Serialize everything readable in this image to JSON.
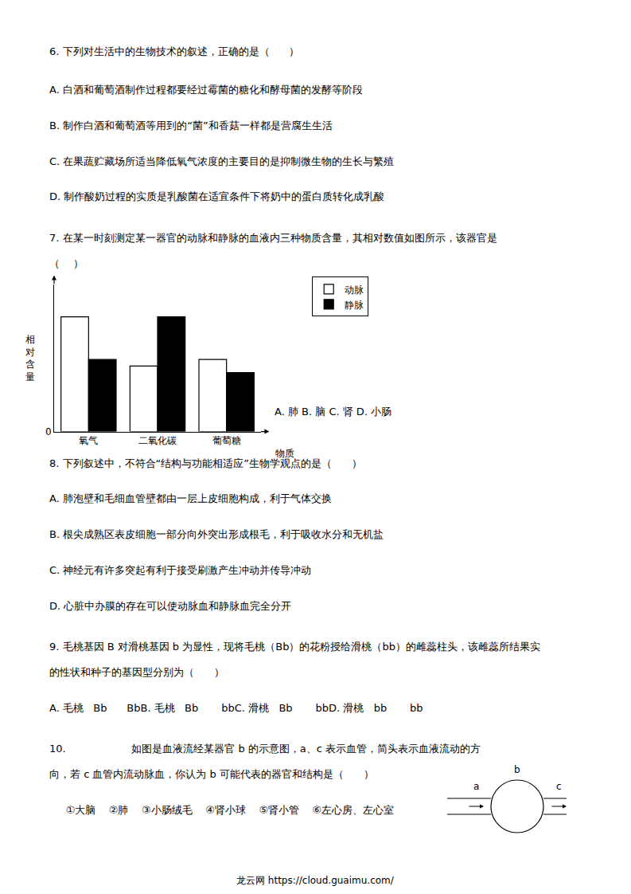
{
  "chart_data": {
    "type": "bar",
    "categories": [
      "氧气",
      "二氧化碳",
      "葡萄糖"
    ],
    "series": [
      {
        "name": "动脉",
        "color": "#ffffff",
        "values": [
          3.5,
          2.0,
          2.2
        ]
      },
      {
        "name": "静脉",
        "color": "#000000",
        "values": [
          2.2,
          3.5,
          1.8
        ]
      }
    ],
    "x_label": "物质",
    "y_label": "相\n对\n含\n量",
    "ylim": [
      0,
      4.5
    ],
    "yticks": [
      0
    ],
    "grid": false,
    "legend": "upper right",
    "annotations": [
      "6. 下列对生活中的生物技术的叙述，正确的是（      ）",
      "A. 白酒和葡萄酒制作过程都要经过霉菌的糖化和酵母菌的发酵等阶段",
      "B. 制作白酒和葡萄酒等用到的“菌”和香菇一样都是营腐生生活",
      "C. 在果蔬贮藏场所适当降低氧气浓度的主要目的是抑制微生物的生长与繁殖",
      "D. 制作酸奶过程的实质是乳酸菌在适宜条件下将奶中的蛋白质转化成乳酸",
      "7. 在某一时刻测定某一器官的动脉和静脉的血液内三种物质含量，其相对数值如图所示，该器官是",
      "（    ）",
      "A. 肺 B. 脑 C. 肾 D. 小肠",
      "8. 下列叙述中，不符合“结构与功能相适应”生物学观点的是（      ）",
      "A. 肺泡壁和毛细血管壁都由一层上皮细胞构成，利于气体交换",
      "B. 根尖成熟区表皮细胞一部分向外突出形成根毛，利于吸收水分和无机盐",
      "C. 神经元有许多突起有利于接受刷激产生冲动并传导冲动",
      "D. 心脏中办膜的存在可以使动脉血和静脉血完全分开",
      "9. 毛桃基因 B 对滑桃基因 b 为显性，现将毛桃（Bb）的花粉授给滑桃（bb）的雌蕊柱头，该雌蕊所结果实",
      "的性状和种子的基因型分别为（      ）",
      "A. 毛桃   Bb      BbB. 毛桃   Bb       bbC. 滑桃   Bb       bbD. 滑桃   bb       bb",
      "10.                    如图是血液流经某器官 b 的示意图，a、c 表示血管，简头表示血液流动的方",
      "向，若 c 血管内流动脉血，你认为 b 可能代表的器官和结构是（      ）",
      "     ①大脑    ②肺    ③小肠绒毛    ④肾小球    ⑤肾小管    ⑥左心房、左心室",
      "a",
      "b",
      "c",
      "龙云网 https://cloud.guaimu.com/"
    ]
  }
}
